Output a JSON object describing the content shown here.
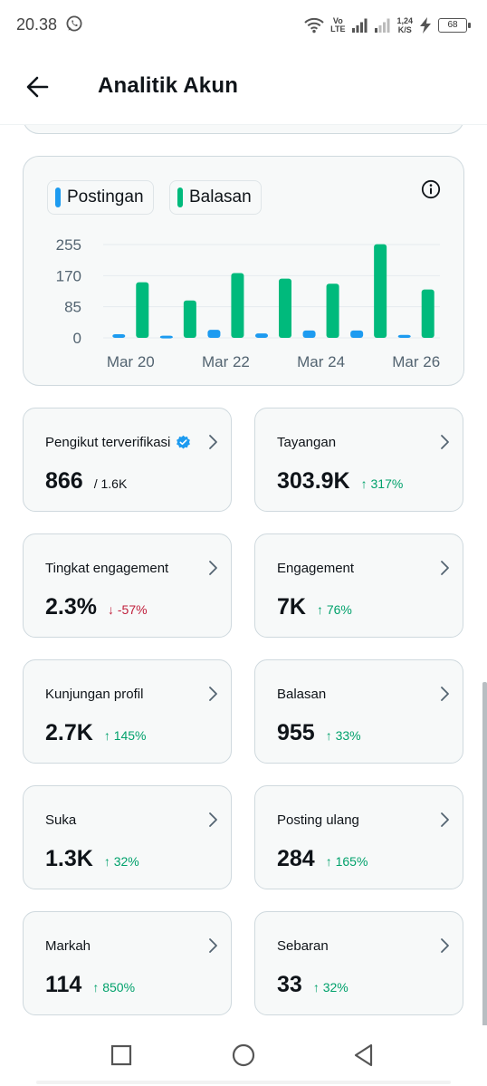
{
  "status_bar": {
    "time": "20.38",
    "network_type_top": "Vo",
    "network_type_bottom": "LTE",
    "speed_value": "1,24",
    "speed_unit": "K/S",
    "battery": "68",
    "icons": [
      "whatsapp-icon",
      "wifi-icon",
      "signal-icon",
      "signal-weak-icon",
      "charging-icon",
      "battery-icon"
    ]
  },
  "header": {
    "title": "Analitik Akun",
    "back_icon": "arrow-left-icon"
  },
  "legend": {
    "posts_label": "Postingan",
    "replies_label": "Balasan",
    "info_icon": "info-icon"
  },
  "colors": {
    "posts": "#1d9bf0",
    "replies": "#00ba7c",
    "up": "#00a16b",
    "down": "#c0203c"
  },
  "chart_data": {
    "type": "bar",
    "categories": [
      "Mar 20",
      "Mar 21",
      "Mar 22",
      "Mar 23",
      "Mar 24",
      "Mar 25",
      "Mar 26"
    ],
    "x_tick_labels": [
      "Mar 20",
      "Mar 22",
      "Mar 24",
      "Mar 26"
    ],
    "y_tick_labels": [
      "255",
      "170",
      "85",
      "0"
    ],
    "ylim": [
      0,
      255
    ],
    "grid": true,
    "series": [
      {
        "name": "Postingan",
        "values": [
          10,
          6,
          22,
          12,
          20,
          20,
          8
        ]
      },
      {
        "name": "Balasan",
        "values": [
          152,
          102,
          177,
          162,
          148,
          256,
          132
        ]
      }
    ]
  },
  "metrics": [
    {
      "label": "Pengikut terverifikasi",
      "value": "866",
      "secondary": "/ 1.6K",
      "change": "",
      "verified": true
    },
    {
      "label": "Tayangan",
      "value": "303.9K",
      "secondary": "",
      "change": "↑ 317%",
      "direction": "up"
    },
    {
      "label": "Tingkat engagement",
      "value": "2.3%",
      "secondary": "",
      "change": "↓ -57%",
      "direction": "down"
    },
    {
      "label": "Engagement",
      "value": "7K",
      "secondary": "",
      "change": "↑ 76%",
      "direction": "up"
    },
    {
      "label": "Kunjungan profil",
      "value": "2.7K",
      "secondary": "",
      "change": "↑ 145%",
      "direction": "up"
    },
    {
      "label": "Balasan",
      "value": "955",
      "secondary": "",
      "change": "↑ 33%",
      "direction": "up"
    },
    {
      "label": "Suka",
      "value": "1.3K",
      "secondary": "",
      "change": "↑ 32%",
      "direction": "up"
    },
    {
      "label": "Posting ulang",
      "value": "284",
      "secondary": "",
      "change": "↑ 165%",
      "direction": "up"
    },
    {
      "label": "Markah",
      "value": "114",
      "secondary": "",
      "change": "↑ 850%",
      "direction": "up"
    },
    {
      "label": "Sebaran",
      "value": "33",
      "secondary": "",
      "change": "↑ 32%",
      "direction": "up"
    }
  ],
  "nav": {
    "icons": [
      "recents-icon",
      "home-icon",
      "back-triangle-icon"
    ]
  }
}
